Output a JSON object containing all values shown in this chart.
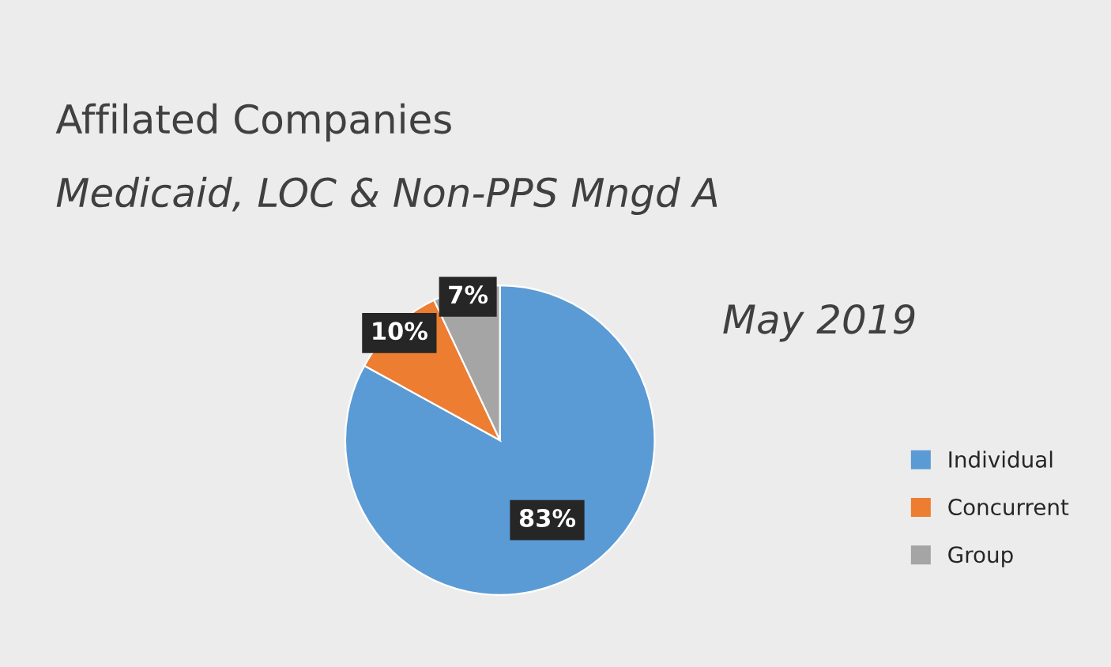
{
  "chart_data": {
    "type": "pie",
    "title": "Affilated Companies",
    "subtitle": "Medicaid, LOC & Non-PPS Mngd A",
    "annotations": [
      "May 2019"
    ],
    "categories": [
      "Individual",
      "Concurrent",
      "Group"
    ],
    "values": [
      83,
      10,
      7
    ],
    "colors": [
      "#5b9bd5",
      "#ed7d31",
      "#a5a5a5"
    ],
    "value_labels": [
      "83%",
      "10%",
      "7%"
    ],
    "legend": "right"
  }
}
